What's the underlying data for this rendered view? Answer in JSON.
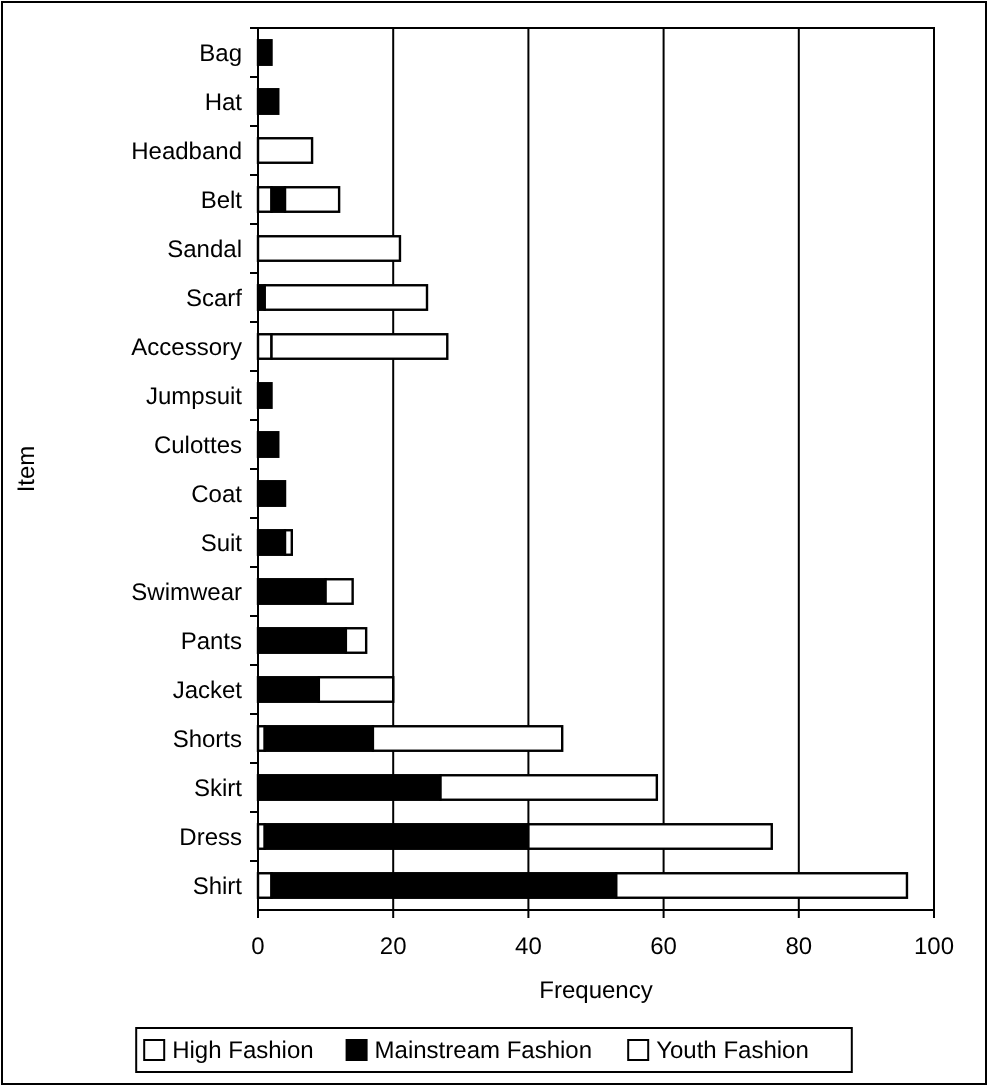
{
  "chart_data": {
    "type": "bar",
    "orientation": "horizontal",
    "stacked": true,
    "xlabel": "Frequency",
    "ylabel": "Item",
    "categories": [
      "Bag",
      "Hat",
      "Headband",
      "Belt",
      "Sandal",
      "Scarf",
      "Accessory",
      "Jumpsuit",
      "Culottes",
      "Coat",
      "Suit",
      "Swimwear",
      "Pants",
      "Jacket",
      "Shorts",
      "Skirt",
      "Dress",
      "Shirt"
    ],
    "series": [
      {
        "name": "High Fashion",
        "color": "#ffffff",
        "values": [
          0,
          0,
          0,
          2,
          0,
          0,
          2,
          0,
          0,
          0,
          0,
          0,
          0,
          0,
          1,
          0,
          1,
          2
        ]
      },
      {
        "name": "Mainstream Fashion",
        "color": "#000000",
        "values": [
          2,
          3,
          0,
          2,
          0,
          1,
          0,
          2,
          3,
          4,
          4,
          10,
          13,
          9,
          16,
          27,
          39,
          51
        ]
      },
      {
        "name": "Youth Fashion",
        "color": "#ffffff",
        "values": [
          0,
          0,
          8,
          8,
          21,
          24,
          26,
          0,
          0,
          0,
          1,
          4,
          3,
          11,
          28,
          32,
          36,
          43
        ]
      }
    ],
    "xlim": [
      0,
      100
    ],
    "xticks": [
      0,
      20,
      40,
      60,
      80,
      100
    ],
    "grid": "x",
    "legend": "bottom"
  }
}
